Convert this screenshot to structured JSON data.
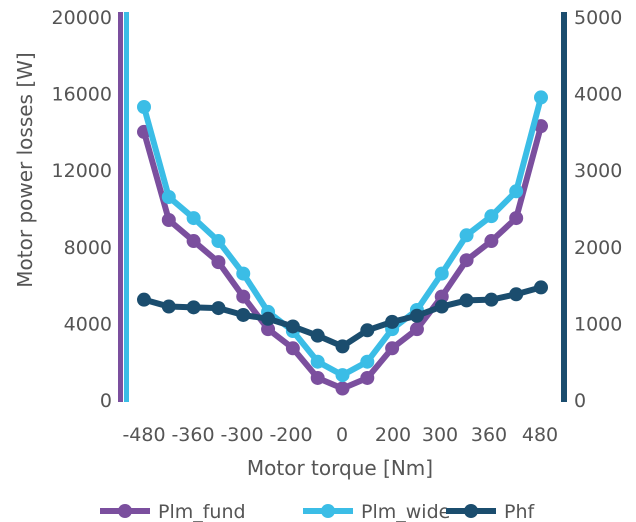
{
  "chart_data": {
    "type": "line",
    "xlabel": "Motor torque [Nm]",
    "ylabel": "Motor power losses [W]",
    "x_tick_labels": [
      "-480",
      "-360",
      "-300",
      "-200",
      "0",
      "200",
      "300",
      "360",
      "480"
    ],
    "ylim_left": [
      0,
      20000
    ],
    "ylim_right": [
      0,
      5000
    ],
    "y_ticks_left": [
      "0",
      "4000",
      "8000",
      "12000",
      "16000",
      "20000"
    ],
    "y_ticks_right": [
      "0",
      "1000",
      "2000",
      "3000",
      "4000",
      "5000"
    ],
    "x": [
      -480,
      -420,
      -360,
      -300,
      -240,
      -180,
      -120,
      -60,
      0,
      60,
      120,
      180,
      240,
      300,
      360,
      420,
      480
    ],
    "legend_position": "bottom",
    "series": [
      {
        "name": "Plm_fund",
        "axis": "left",
        "color": "#7b4f9e",
        "values": [
          14000,
          9400,
          8300,
          7200,
          5400,
          3700,
          2700,
          1150,
          600,
          1150,
          2700,
          3700,
          5400,
          7300,
          8300,
          9500,
          14300
        ]
      },
      {
        "name": "Plm_wide",
        "axis": "left",
        "color": "#3bbde6",
        "values": [
          15300,
          10600,
          9500,
          8300,
          6600,
          4600,
          3600,
          2000,
          1300,
          2000,
          3700,
          4700,
          6600,
          8600,
          9600,
          10900,
          15800
        ]
      },
      {
        "name": "Phf",
        "axis": "right",
        "color": "#1b4d6e",
        "values": [
          1310,
          1220,
          1210,
          1200,
          1110,
          1060,
          960,
          840,
          700,
          910,
          1020,
          1100,
          1220,
          1300,
          1310,
          1380,
          1470
        ]
      }
    ],
    "axis_colors": {
      "left": "#7b4f9e",
      "left_inner": "#3bbde6",
      "right": "#1b4d6e"
    }
  }
}
